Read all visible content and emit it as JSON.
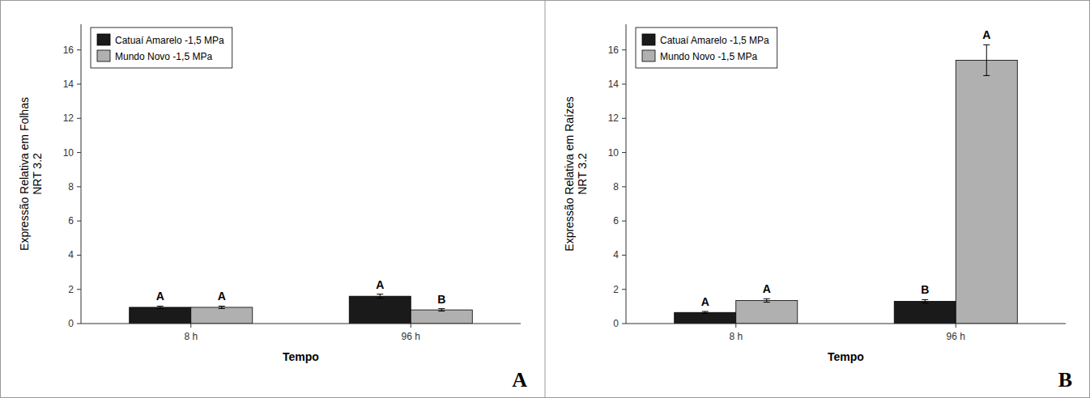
{
  "chart_data": [
    {
      "type": "bar",
      "title": "A",
      "xlabel": "Tempo",
      "ylabel": "Expressão Relativa em Folhas\nNRT 3.2",
      "categories": [
        "8 h",
        "96 h"
      ],
      "series": [
        {
          "name": "Catuaí Amarelo -1,5 MPa",
          "color": "#1a1a1a",
          "values": [
            0.95,
            1.6
          ],
          "errors": [
            0.07,
            0.12
          ],
          "letters": [
            "A",
            "A"
          ]
        },
        {
          "name": "Mundo Novo -1,5 MPa",
          "color": "#b0b0b0",
          "values": [
            0.95,
            0.8
          ],
          "errors": [
            0.07,
            0.07
          ],
          "letters": [
            "A",
            "B"
          ]
        }
      ],
      "ylim": [
        0,
        17.5
      ],
      "yticks": [
        0,
        2,
        4,
        6,
        8,
        10,
        12,
        14,
        16
      ],
      "grid": false,
      "legend": "upper left"
    },
    {
      "type": "bar",
      "title": "B",
      "xlabel": "Tempo",
      "ylabel": "Expressão Relativa em Raízes\nNRT 3.2",
      "categories": [
        "8 h",
        "96 h"
      ],
      "series": [
        {
          "name": "Catuaí Amarelo -1,5 MPa",
          "color": "#1a1a1a",
          "values": [
            0.65,
            1.3
          ],
          "errors": [
            0.06,
            0.1
          ],
          "letters": [
            "A",
            "B"
          ]
        },
        {
          "name": "Mundo Novo -1,5 MPa",
          "color": "#b0b0b0",
          "values": [
            1.35,
            15.4
          ],
          "errors": [
            0.1,
            0.9
          ],
          "letters": [
            "A",
            "A"
          ]
        }
      ],
      "ylim": [
        0,
        17.5
      ],
      "yticks": [
        0,
        2,
        4,
        6,
        8,
        10,
        12,
        14,
        16
      ],
      "grid": false,
      "legend": "upper left"
    }
  ]
}
